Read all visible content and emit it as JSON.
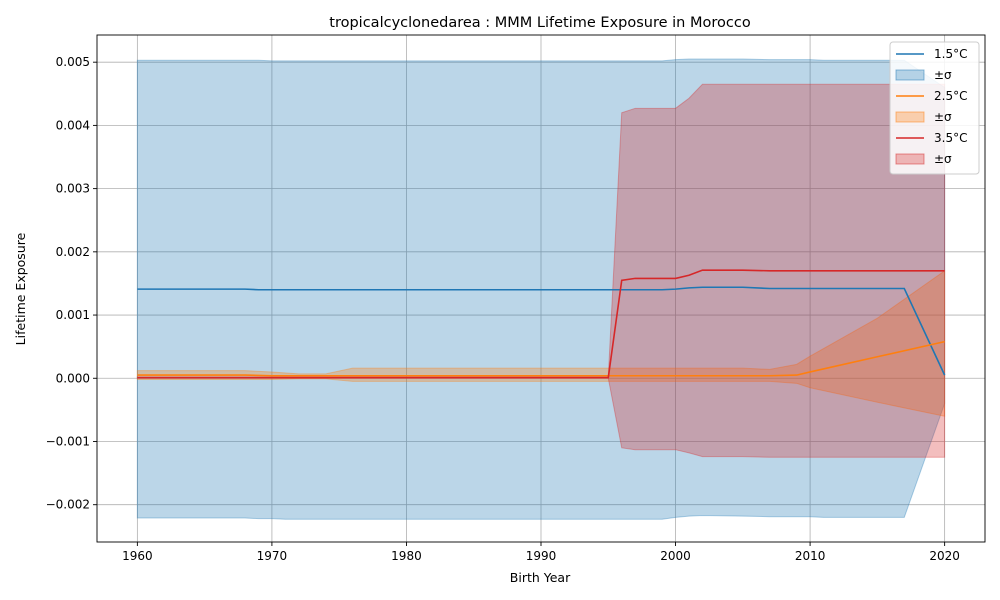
{
  "chart_data": {
    "type": "line",
    "title": "tropicalcyclonedarea : MMM Lifetime Exposure in Morocco",
    "xlabel": "Birth Year",
    "ylabel": "Lifetime Exposure",
    "xlim": [
      1957,
      2023
    ],
    "ylim": [
      -0.00259,
      0.00543
    ],
    "xticks": [
      1960,
      1970,
      1980,
      1990,
      2000,
      2010,
      2020
    ],
    "xtick_labels": [
      "1960",
      "1970",
      "1980",
      "1990",
      "2000",
      "2010",
      "2020"
    ],
    "yticks": [
      -0.002,
      -0.001,
      0.0,
      0.001,
      0.002,
      0.003,
      0.004,
      0.005
    ],
    "ytick_labels": [
      "−0.002",
      "−0.001",
      "0.000",
      "0.001",
      "0.002",
      "0.003",
      "0.004",
      "0.005"
    ],
    "grid": true,
    "legend_position": "top-right",
    "legend": [
      {
        "kind": "line",
        "series": 0,
        "label": "1.5°C"
      },
      {
        "kind": "band",
        "series": 0,
        "label": "±σ"
      },
      {
        "kind": "line",
        "series": 1,
        "label": "2.5°C"
      },
      {
        "kind": "band",
        "series": 1,
        "label": "±σ"
      },
      {
        "kind": "line",
        "series": 2,
        "label": "3.5°C"
      },
      {
        "kind": "band",
        "series": 2,
        "label": "±σ"
      }
    ],
    "series": [
      {
        "name": "1.5°C",
        "color": "#1f77b4",
        "band_color": "#1f77b4",
        "band_opacity": 0.3,
        "x": [
          1960,
          1968,
          1969,
          1970,
          1971,
          1998,
          1999,
          2000,
          2001,
          2002,
          2005,
          2007,
          2010,
          2011,
          2017,
          2020
        ],
        "y": [
          0.00141,
          0.00141,
          0.0014,
          0.0014,
          0.0014,
          0.0014,
          0.0014,
          0.00141,
          0.00143,
          0.00144,
          0.00144,
          0.00142,
          0.00142,
          0.00142,
          0.00142,
          5e-05
        ],
        "upper": [
          0.00503,
          0.00503,
          0.00503,
          0.00502,
          0.00502,
          0.00502,
          0.00502,
          0.00504,
          0.00505,
          0.00505,
          0.00505,
          0.00504,
          0.00504,
          0.00503,
          0.00503,
          0.0046
        ],
        "lower": [
          -0.00221,
          -0.00221,
          -0.00222,
          -0.00222,
          -0.00223,
          -0.00223,
          -0.00223,
          -0.0022,
          -0.00218,
          -0.00217,
          -0.00218,
          -0.00219,
          -0.00219,
          -0.0022,
          -0.0022,
          -0.0004
        ]
      },
      {
        "name": "2.5°C",
        "color": "#ff7f0e",
        "band_color": "#ff7f0e",
        "band_opacity": 0.3,
        "x": [
          1960,
          1968,
          1970,
          1972,
          1974,
          1976,
          1980,
          1995,
          2000,
          2005,
          2007,
          2009,
          2010,
          2015,
          2020
        ],
        "y": [
          5e-05,
          5e-05,
          4e-05,
          4e-05,
          4e-05,
          4e-05,
          4e-05,
          4e-05,
          4e-05,
          4e-05,
          4e-05,
          5e-05,
          0.0001,
          0.00034,
          0.00058
        ],
        "upper": [
          0.00012,
          0.00012,
          0.0001,
          7e-05,
          7e-05,
          0.00016,
          0.00016,
          0.00016,
          0.00016,
          0.00016,
          0.00014,
          0.00022,
          0.00035,
          0.00095,
          0.0017
        ],
        "lower": [
          -2e-05,
          -2e-05,
          -2e-05,
          -1e-05,
          -1e-05,
          -5e-05,
          -5e-05,
          -5e-05,
          -5e-05,
          -5e-05,
          -5e-05,
          -8e-05,
          -0.00015,
          -0.00038,
          -0.0006
        ]
      },
      {
        "name": "3.5°C",
        "color": "#d62728",
        "band_color": "#d62728",
        "band_opacity": 0.3,
        "x": [
          1960,
          1970,
          1995,
          1996,
          1997,
          2000,
          2001,
          2002,
          2005,
          2007,
          2020
        ],
        "y": [
          1e-05,
          1e-05,
          1e-05,
          0.00155,
          0.00158,
          0.00158,
          0.00163,
          0.00171,
          0.00171,
          0.0017,
          0.0017
        ],
        "upper": [
          2e-05,
          2e-05,
          2e-05,
          0.0042,
          0.00427,
          0.00427,
          0.00443,
          0.00465,
          0.00465,
          0.00465,
          0.00465
        ],
        "lower": [
          0.0,
          0.0,
          0.0,
          -0.0011,
          -0.00113,
          -0.00113,
          -0.00118,
          -0.00124,
          -0.00124,
          -0.00125,
          -0.00125
        ]
      }
    ]
  }
}
